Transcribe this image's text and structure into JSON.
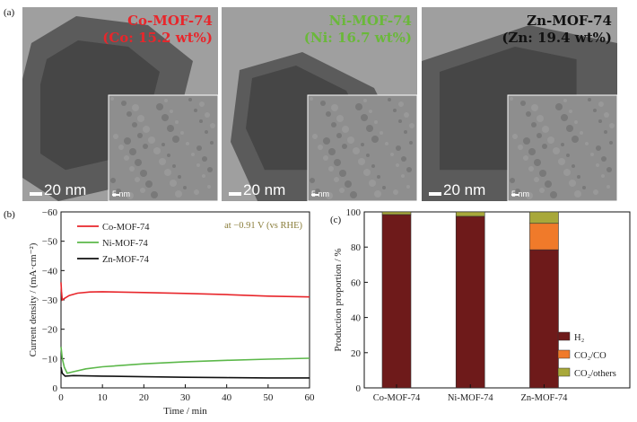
{
  "panel_a": {
    "letter": "(a)",
    "images": [
      {
        "title": "Co-MOF-74",
        "loading": "(Co: 15.2 wt%)",
        "color": "#e8262b",
        "scale": "20 nm",
        "inset_scale": "5 nm"
      },
      {
        "title": "Ni-MOF-74",
        "loading": "(Ni: 16.7 wt%)",
        "color": "#6ab83a",
        "scale": "20 nm",
        "inset_scale": "5 nm"
      },
      {
        "title": "Zn-MOF-74",
        "loading": "(Zn: 19.4 wt%)",
        "color": "#111111",
        "scale": "20 nm",
        "inset_scale": "5 nm"
      }
    ]
  },
  "chart_data": [
    {
      "type": "line",
      "panel": "(b)",
      "xlabel": "Time / min",
      "ylabel": "Current density / (mA·cm⁻²)",
      "xlim": [
        0,
        60
      ],
      "ylim": [
        0,
        -60
      ],
      "x_ticks": [
        "0",
        "10",
        "20",
        "30",
        "40",
        "50",
        "60"
      ],
      "y_ticks": [
        "0",
        "−10",
        "−20",
        "−30",
        "−40",
        "−50",
        "−60"
      ],
      "annotation": "at −0.91 V (vs RHE)",
      "legend_position": "top-left",
      "series": [
        {
          "name": "Co-MOF-74",
          "color": "#e8262b",
          "points": [
            [
              0,
              -36
            ],
            [
              0.1,
              -33
            ],
            [
              0.3,
              -30
            ],
            [
              0.8,
              -30.5
            ],
            [
              2,
              -31.5
            ],
            [
              4,
              -32.3
            ],
            [
              7,
              -32.7
            ],
            [
              10,
              -32.8
            ],
            [
              20,
              -32.5
            ],
            [
              30,
              -32.2
            ],
            [
              40,
              -31.8
            ],
            [
              50,
              -31.3
            ],
            [
              60,
              -31
            ]
          ]
        },
        {
          "name": "Ni-MOF-74",
          "color": "#5cb84a",
          "points": [
            [
              0,
              -14
            ],
            [
              0.3,
              -10
            ],
            [
              0.8,
              -7
            ],
            [
              1.5,
              -5
            ],
            [
              3,
              -5.5
            ],
            [
              6,
              -6.5
            ],
            [
              10,
              -7.2
            ],
            [
              20,
              -8.2
            ],
            [
              30,
              -8.9
            ],
            [
              40,
              -9.4
            ],
            [
              50,
              -9.8
            ],
            [
              60,
              -10.1
            ]
          ]
        },
        {
          "name": "Zn-MOF-74",
          "color": "#111111",
          "points": [
            [
              0,
              -7
            ],
            [
              0.3,
              -5
            ],
            [
              1,
              -4
            ],
            [
              3,
              -4.2
            ],
            [
              10,
              -4
            ],
            [
              20,
              -3.8
            ],
            [
              30,
              -3.6
            ],
            [
              40,
              -3.5
            ],
            [
              50,
              -3.4
            ],
            [
              60,
              -3.4
            ]
          ]
        }
      ]
    },
    {
      "type": "bar",
      "panel": "(c)",
      "stacked": true,
      "ylabel": "Production proportion / %",
      "ylim": [
        0,
        100
      ],
      "y_ticks": [
        "0",
        "20",
        "40",
        "60",
        "80",
        "100"
      ],
      "categories": [
        "Co-MOF-74",
        "Ni-MOF-74",
        "Zn-MOF-74"
      ],
      "legend_position": "bottom-right",
      "series": [
        {
          "name": "H₂",
          "color": "#6e1a1a",
          "values": [
            98.5,
            97.5,
            78.5
          ]
        },
        {
          "name": "CO₂/CO",
          "color": "#f07a2a",
          "values": [
            0,
            0,
            15
          ]
        },
        {
          "name": "CO₂/others",
          "color": "#a8a83a",
          "values": [
            1.5,
            2.5,
            6.5
          ]
        }
      ]
    }
  ]
}
